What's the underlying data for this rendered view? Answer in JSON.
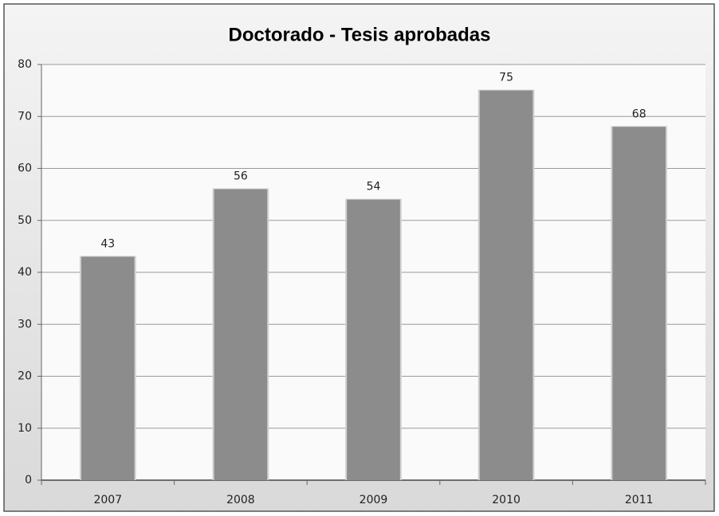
{
  "chart_data": {
    "type": "bar",
    "title": "Doctorado - Tesis aprobadas",
    "categories": [
      "2007",
      "2008",
      "2009",
      "2010",
      "2011"
    ],
    "values": [
      43,
      56,
      54,
      75,
      68
    ],
    "color": "#8c8c8c",
    "ylim": [
      0,
      80
    ],
    "yticks": [
      0,
      10,
      20,
      30,
      40,
      50,
      60,
      70,
      80
    ],
    "grid": true
  }
}
